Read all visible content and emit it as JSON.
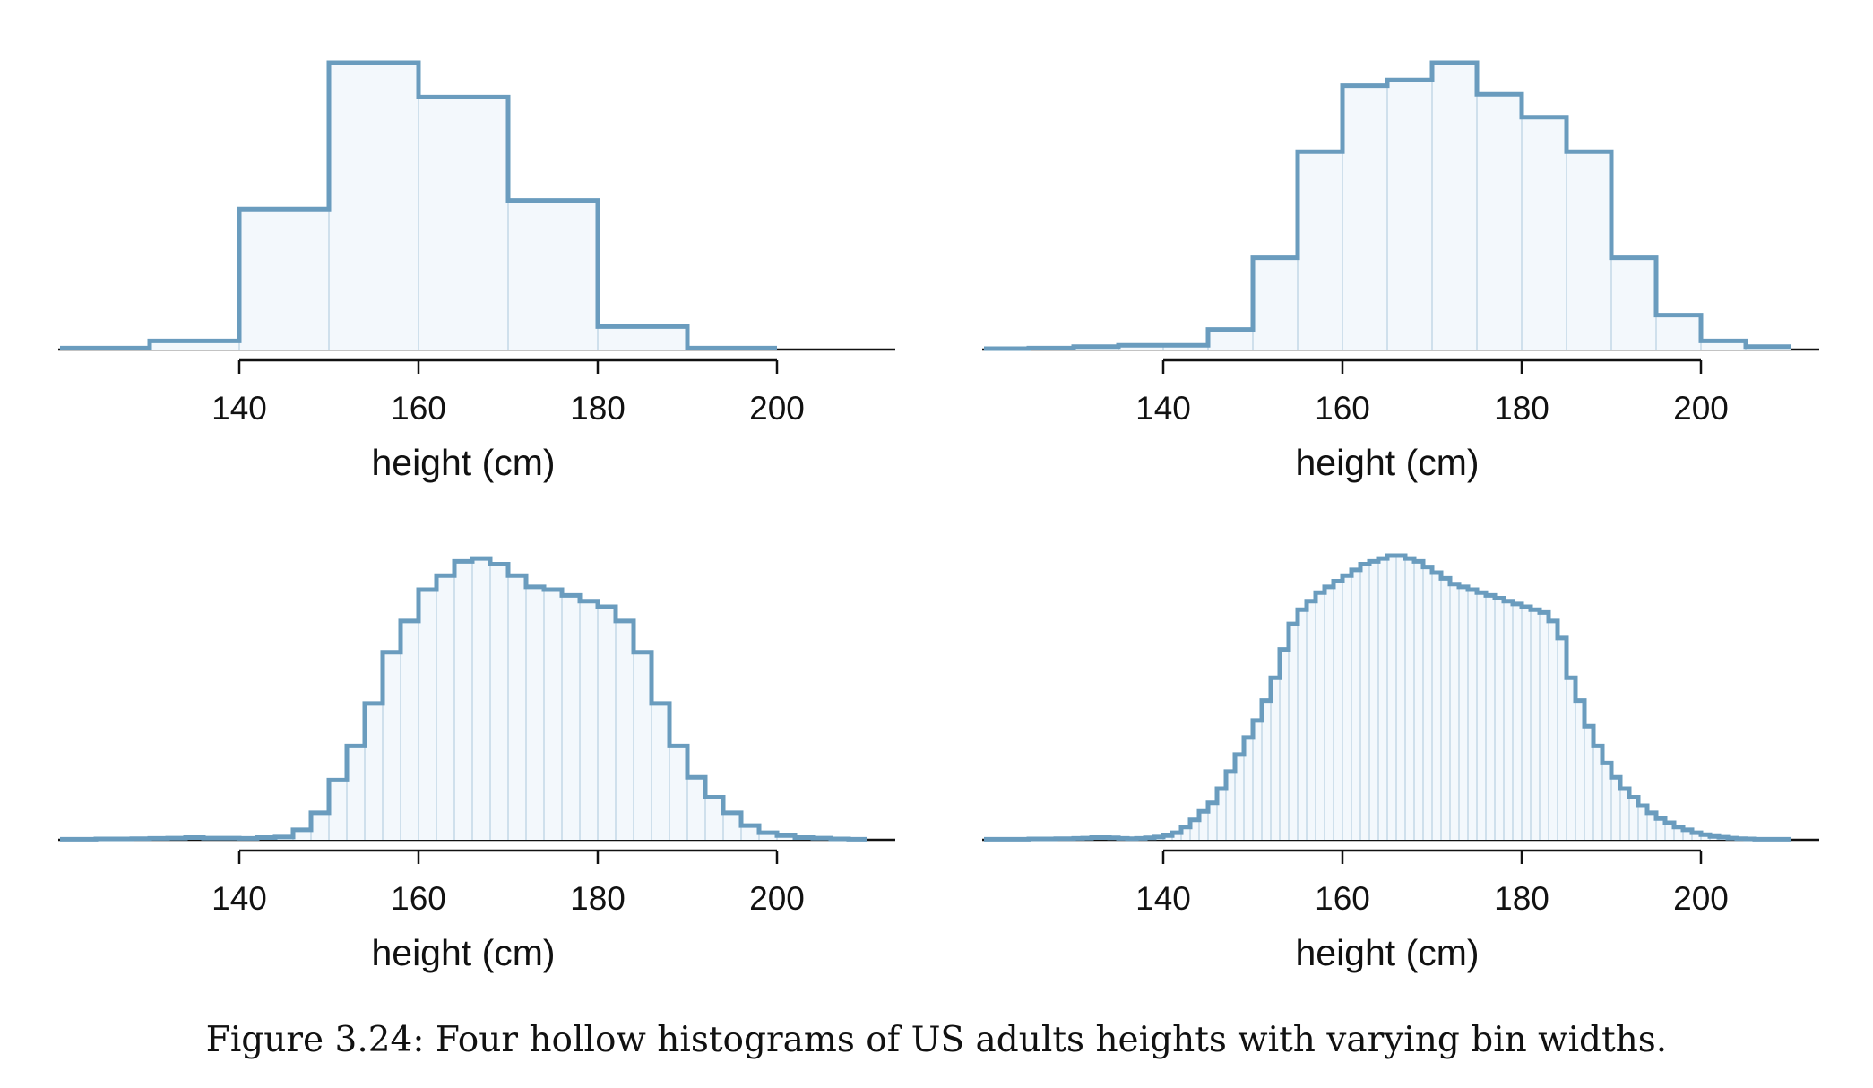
{
  "figure": {
    "caption": "Figure 3.24: Four hollow histograms of US adults heights with varying bin widths."
  },
  "chart_data": [
    {
      "type": "histogram",
      "style": "hollow",
      "xlabel": "height (cm)",
      "ylabel": "",
      "xlim": [
        120,
        210
      ],
      "xticks": [
        140,
        160,
        180,
        200
      ],
      "y_axis_shown": false,
      "bin_width": 10,
      "bins_start": 120,
      "values": [
        0.5,
        3,
        49,
        100,
        88,
        52,
        8,
        0.5
      ],
      "ylim": [
        0,
        100
      ]
    },
    {
      "type": "histogram",
      "style": "hollow",
      "xlabel": "height (cm)",
      "ylabel": "",
      "xlim": [
        120,
        210
      ],
      "xticks": [
        140,
        160,
        180,
        200
      ],
      "y_axis_shown": false,
      "bin_width": 5,
      "bins_start": 120,
      "values": [
        0.3,
        0.5,
        1,
        1.5,
        1.5,
        7,
        32,
        69,
        92,
        94,
        100,
        89,
        81,
        69,
        32,
        12,
        3,
        1
      ],
      "ylim": [
        0,
        100
      ]
    },
    {
      "type": "histogram",
      "style": "hollow",
      "xlabel": "height (cm)",
      "ylabel": "",
      "xlim": [
        120,
        210
      ],
      "xticks": [
        140,
        160,
        180,
        200
      ],
      "y_axis_shown": false,
      "bin_width": 2,
      "bins_start": 120,
      "values": [
        0.2,
        0.2,
        0.3,
        0.3,
        0.4,
        0.5,
        0.6,
        0.8,
        0.6,
        0.6,
        0.5,
        0.8,
        1,
        3.5,
        9.5,
        21,
        33,
        48,
        66,
        77,
        88,
        93,
        98,
        99,
        97,
        93,
        89,
        88,
        86,
        84,
        82,
        77,
        66,
        48,
        33,
        22,
        15,
        9.5,
        5,
        2.5,
        1.5,
        0.8,
        0.6,
        0.3,
        0.2
      ],
      "ylim": [
        0,
        100
      ]
    },
    {
      "type": "histogram",
      "style": "hollow",
      "xlabel": "height (cm)",
      "ylabel": "",
      "xlim": [
        120,
        210
      ],
      "xticks": [
        140,
        160,
        180,
        200
      ],
      "y_axis_shown": false,
      "bin_width": 1,
      "bins_start": 120,
      "values": [
        0.2,
        0.2,
        0.2,
        0.2,
        0.2,
        0.3,
        0.3,
        0.3,
        0.4,
        0.4,
        0.5,
        0.6,
        0.8,
        0.8,
        0.7,
        0.5,
        0.4,
        0.5,
        0.7,
        1.0,
        1.5,
        2.5,
        4.5,
        7,
        10,
        13,
        18,
        24,
        30,
        36,
        42,
        49,
        57,
        67,
        76,
        81,
        84,
        87,
        89,
        91,
        93,
        95,
        97,
        98,
        99,
        100,
        100,
        99,
        98,
        96,
        94,
        92,
        90,
        89,
        88,
        87,
        86,
        85,
        84,
        83,
        82,
        81,
        80,
        77,
        71,
        57,
        49,
        40,
        33,
        27,
        22,
        18,
        15,
        12,
        9.5,
        7.5,
        6,
        4.5,
        3.5,
        2.5,
        1.8,
        1.2,
        0.9,
        0.6,
        0.4,
        0.3,
        0.2,
        0.2,
        0.2,
        0.2
      ],
      "ylim": [
        0,
        100
      ]
    }
  ]
}
